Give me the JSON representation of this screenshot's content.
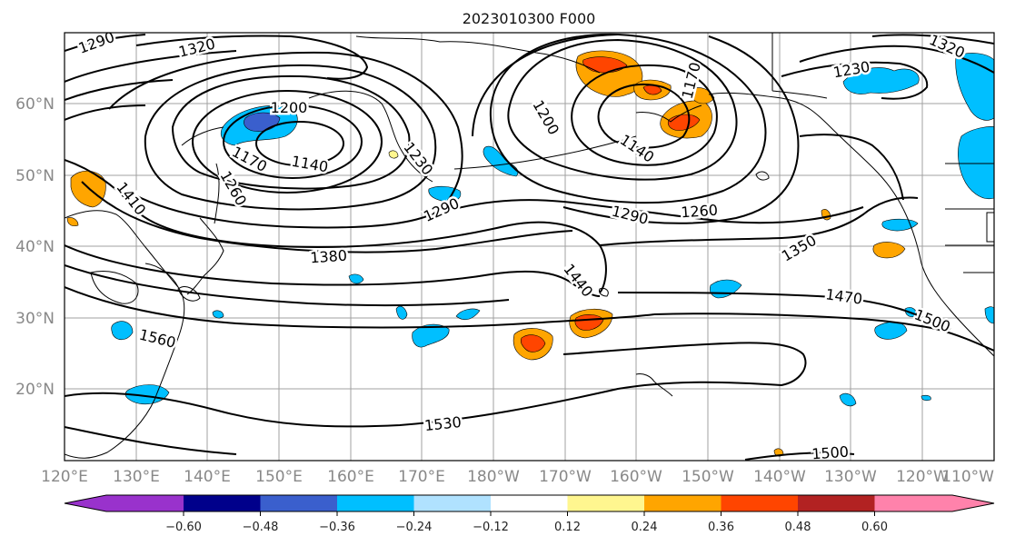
{
  "title": "2023010300 F000",
  "axes": {
    "lat_ticks": [
      "60°N",
      "50°N",
      "40°N",
      "30°N",
      "20°N"
    ],
    "lon_ticks": [
      "120°E",
      "130°E",
      "140°E",
      "150°E",
      "160°E",
      "170°E",
      "180°W",
      "170°W",
      "160°W",
      "150°W",
      "140°W",
      "130°W",
      "120°W",
      "110°W"
    ]
  },
  "contour_labels": [
    "1290",
    "1320",
    "1200",
    "1170",
    "1140",
    "1230",
    "1260",
    "1410",
    "1290",
    "1380",
    "1440",
    "1560",
    "1530",
    "1200",
    "1140",
    "1170",
    "1290",
    "1260",
    "1230",
    "1320",
    "1350",
    "1470",
    "1500",
    "1500"
  ],
  "colorbar": {
    "ticks": [
      "−0.60",
      "−0.48",
      "−0.36",
      "−0.24",
      "−0.12",
      "0.12",
      "0.24",
      "0.36",
      "0.48",
      "0.60"
    ],
    "colors": [
      "#9932cc",
      "#00008b",
      "#3a5fcd",
      "#00bfff",
      "#b0e2ff",
      "#ffffff",
      "#fff68f",
      "#ffa500",
      "#ff4500",
      "#b22222",
      "#ff82ab"
    ]
  }
}
